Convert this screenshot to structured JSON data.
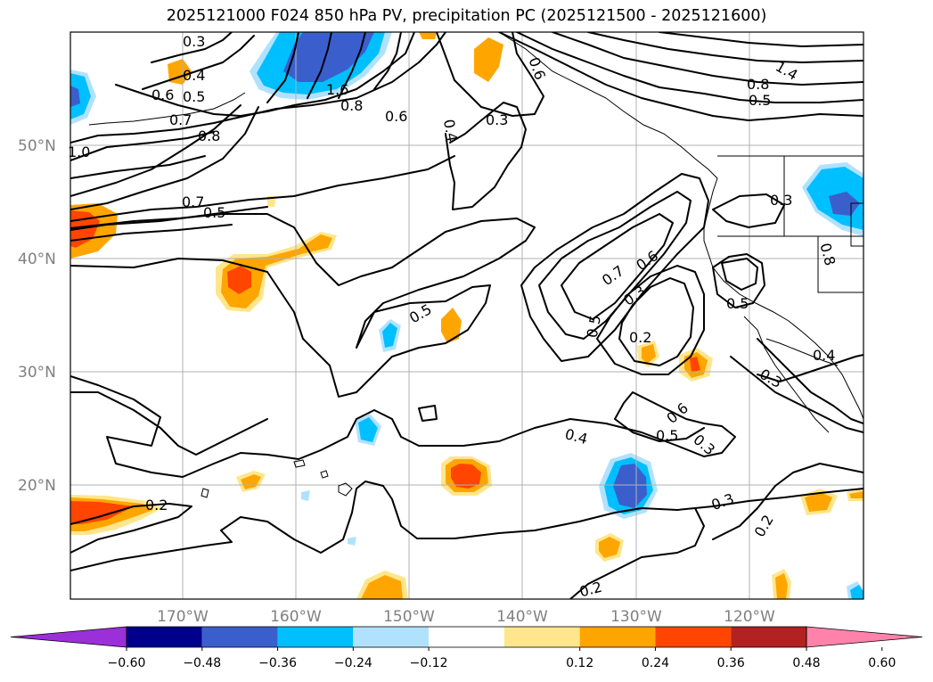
{
  "title": "2025121000 F024 850 hPa PV, precipitation PC (2025121500 - 2025121600)",
  "axes": {
    "lat_labels": [
      "50°N",
      "40°N",
      "30°N",
      "20°N"
    ],
    "lon_labels": [
      "170°W",
      "160°W",
      "150°W",
      "140°W",
      "130°W",
      "120°W"
    ]
  },
  "contour_labels": [
    "0.3",
    "0.4",
    "0.5",
    "0.6",
    "0.7",
    "0.8",
    "1.0",
    "0.7",
    "0.5",
    "1.6",
    "0.8",
    "0.6",
    "0.4",
    "0.3",
    "0.6",
    "1.4",
    "0.8",
    "0.5",
    "0.3",
    "0.8",
    "0.5",
    "0.7",
    "0.6",
    "0.3",
    "0.5",
    "0.2",
    "0.5",
    "0.4",
    "0.3",
    "0.6",
    "0.5",
    "0.3",
    "0.4",
    "0.3",
    "0.2",
    "0.2",
    "0.2"
  ],
  "colorbar": {
    "tick_labels": [
      "−0.60",
      "−0.48",
      "−0.36",
      "−0.24",
      "−0.12",
      "0.12",
      "0.24",
      "0.36",
      "0.48",
      "0.60"
    ],
    "colors": [
      "#9b30d9",
      "#00008b",
      "#3a5fcd",
      "#00bfff",
      "#b0e2ff",
      "#ffffff",
      "#ffe68c",
      "#ffa500",
      "#ff4500",
      "#b22222",
      "#ff82ab"
    ]
  }
}
